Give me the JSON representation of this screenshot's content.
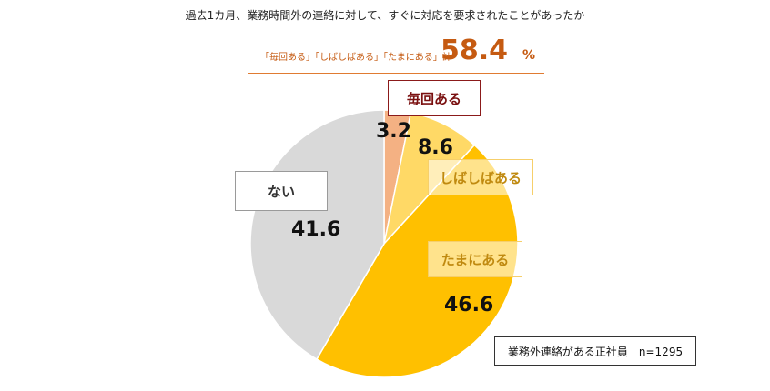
{
  "title": "過去1カ月、業務時間外の連絡に対して、すぐに対応を要求されたことがあったか",
  "summary": {
    "label": "「毎回ある」「しばしばある」「たまにある」計",
    "value": "58.4",
    "unit": "%"
  },
  "note": "業務外連絡がある正社員　n=1295",
  "colors": {
    "every_time": "#f4b183",
    "often": "#ffd966",
    "sometimes": "#ffc000",
    "never": "#d9d9d9",
    "accent": "#c55a11"
  },
  "chart_data": {
    "type": "pie",
    "start_angle": "12 o'clock, clockwise",
    "slices": [
      {
        "label": "毎回ある",
        "value": 3.2,
        "display": "3.2",
        "color": "#f4b183"
      },
      {
        "label": "しばしばある",
        "value": 8.6,
        "display": "8.6",
        "color": "#ffd966"
      },
      {
        "label": "たまにある",
        "value": 46.6,
        "display": "46.6",
        "color": "#ffc000"
      },
      {
        "label": "ない",
        "value": 41.6,
        "display": "41.6",
        "color": "#d9d9d9"
      }
    ]
  }
}
